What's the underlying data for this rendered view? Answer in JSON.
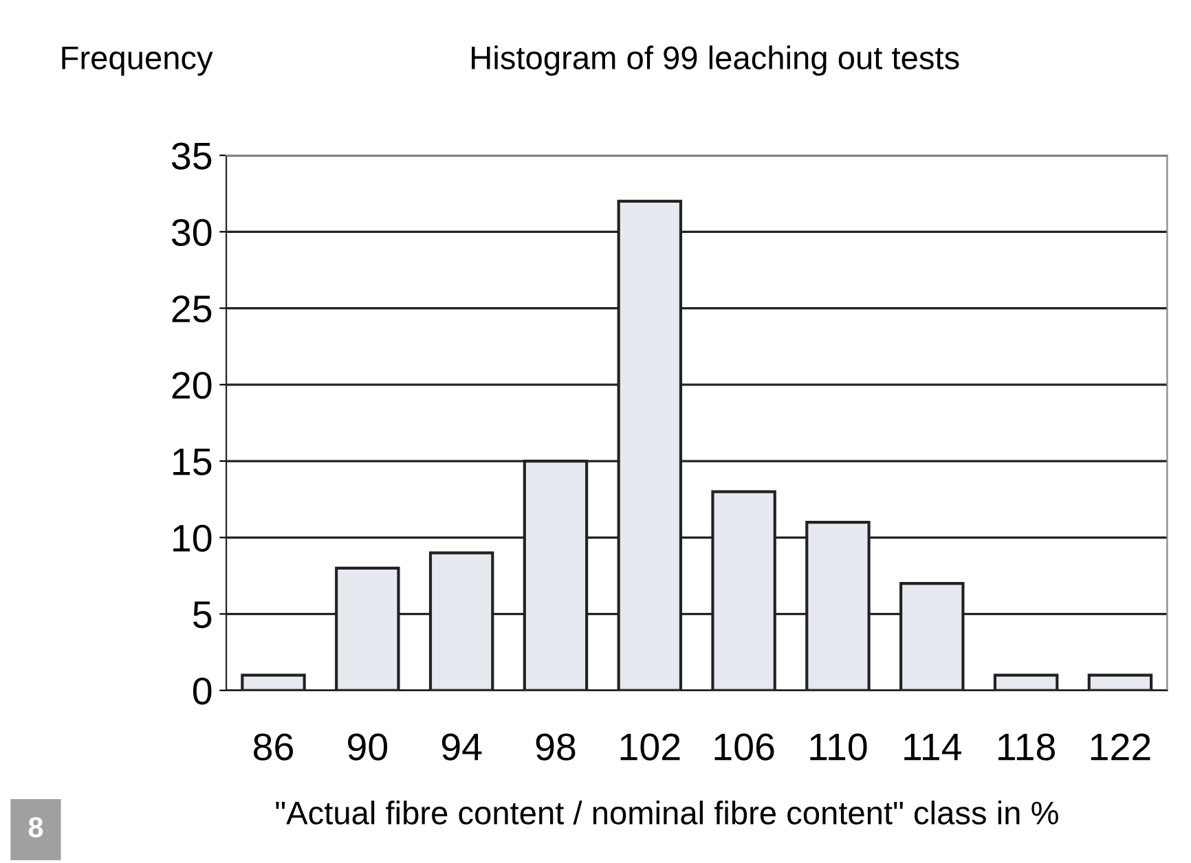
{
  "chart_data": {
    "type": "bar",
    "title": "Histogram of 99 leaching out tests",
    "ylabel": "Frequency",
    "xlabel": "\"Actual fibre content / nominal fibre content\" class in %",
    "categories": [
      "86",
      "90",
      "94",
      "98",
      "102",
      "106",
      "110",
      "114",
      "118",
      "122"
    ],
    "values": [
      1,
      8,
      9,
      15,
      32,
      13,
      11,
      7,
      1,
      1
    ],
    "color": "#e6eaf0",
    "ylim": [
      0,
      35
    ],
    "yticks": [
      0,
      5,
      10,
      15,
      20,
      25,
      30,
      35
    ],
    "grid": "y",
    "annotations": [
      "8"
    ]
  }
}
